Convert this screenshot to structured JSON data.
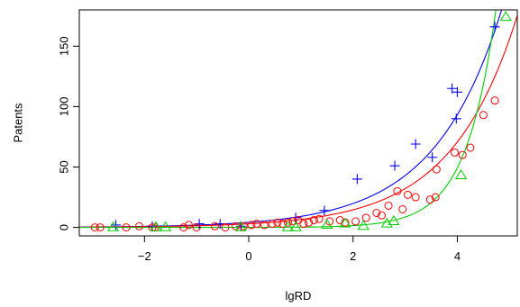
{
  "chart_data": {
    "type": "scatter",
    "title": "",
    "xlabel": "lgRD",
    "ylabel": "Patents",
    "xlim": [
      -3.25,
      5.15
    ],
    "ylim": [
      -7,
      180
    ],
    "xticks": [
      -2,
      0,
      2,
      4
    ],
    "xtick_labels": [
      "−2",
      "0",
      "2",
      "4"
    ],
    "yticks": [
      0,
      50,
      100,
      150
    ],
    "ytick_labels": [
      "0",
      "50",
      "100",
      "150"
    ],
    "grid": false,
    "legend": "none",
    "series": [
      {
        "marker": "plus",
        "color": "#0000ff",
        "curve": {
          "a": 4.2,
          "b": 0.775
        },
        "points": [
          [
            -2.55,
            2
          ],
          [
            -1.85,
            1
          ],
          [
            -0.95,
            3
          ],
          [
            -0.55,
            3
          ],
          [
            -0.15,
            1
          ],
          [
            0.9,
            8
          ],
          [
            1.45,
            14
          ],
          [
            2.08,
            40
          ],
          [
            2.8,
            51
          ],
          [
            3.2,
            69
          ],
          [
            3.52,
            58
          ],
          [
            3.9,
            115
          ],
          [
            4.0,
            112
          ],
          [
            3.98,
            90
          ],
          [
            4.72,
            166
          ]
        ]
      },
      {
        "marker": "circle",
        "color": "#ff0000",
        "curve": {
          "a": 3.0,
          "b": 0.79
        },
        "points": [
          [
            -2.95,
            0
          ],
          [
            -2.85,
            0
          ],
          [
            -2.35,
            0
          ],
          [
            -2.1,
            1
          ],
          [
            -1.85,
            0
          ],
          [
            -1.8,
            0
          ],
          [
            -1.25,
            0
          ],
          [
            -1.15,
            2
          ],
          [
            -1.0,
            0
          ],
          [
            -0.65,
            1
          ],
          [
            -0.45,
            0
          ],
          [
            -0.25,
            1
          ],
          [
            -0.1,
            1
          ],
          [
            0.05,
            2
          ],
          [
            0.15,
            3
          ],
          [
            0.3,
            2
          ],
          [
            0.45,
            3
          ],
          [
            0.55,
            4
          ],
          [
            0.65,
            3
          ],
          [
            0.75,
            4
          ],
          [
            0.85,
            5
          ],
          [
            0.95,
            6
          ],
          [
            1.05,
            3
          ],
          [
            1.15,
            4
          ],
          [
            1.25,
            6
          ],
          [
            1.35,
            7
          ],
          [
            1.55,
            5
          ],
          [
            1.75,
            6
          ],
          [
            1.85,
            4
          ],
          [
            2.05,
            5
          ],
          [
            2.25,
            8
          ],
          [
            2.45,
            12
          ],
          [
            2.55,
            10
          ],
          [
            2.68,
            18
          ],
          [
            2.85,
            30
          ],
          [
            2.95,
            15
          ],
          [
            3.05,
            27
          ],
          [
            3.2,
            25
          ],
          [
            3.48,
            23
          ],
          [
            3.58,
            25
          ],
          [
            3.6,
            48
          ],
          [
            3.95,
            62
          ],
          [
            4.1,
            60
          ],
          [
            4.25,
            66
          ],
          [
            4.5,
            93
          ],
          [
            4.72,
            105
          ]
        ]
      },
      {
        "marker": "triangle",
        "color": "#00cd00",
        "curve": {
          "a": 0.045,
          "b": 1.75
        },
        "points": [
          [
            -2.6,
            0
          ],
          [
            -1.78,
            0
          ],
          [
            -1.6,
            0
          ],
          [
            -0.15,
            0
          ],
          [
            0.75,
            0
          ],
          [
            0.9,
            0
          ],
          [
            1.5,
            2
          ],
          [
            1.85,
            3
          ],
          [
            2.2,
            1
          ],
          [
            2.65,
            3
          ],
          [
            2.78,
            5
          ],
          [
            4.07,
            43
          ],
          [
            4.93,
            174
          ]
        ]
      }
    ]
  }
}
